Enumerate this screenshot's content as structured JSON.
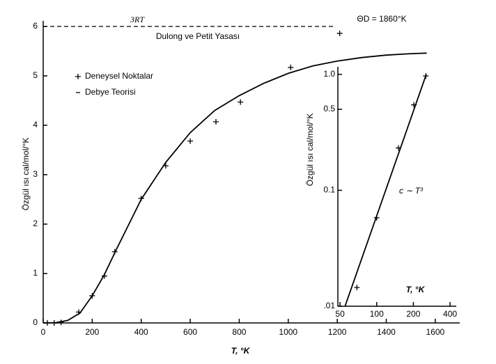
{
  "chart_data": [
    {
      "type": "line",
      "xlabel": "T, °K",
      "ylabel": "Özgül ısı cal/mol/°K",
      "annotation": "ΘD = 1860°K",
      "reference_line": {
        "value": 6,
        "label": "3RT",
        "text": "Dulong ve Petit Yasası"
      },
      "legend": "upper left",
      "xlim": [
        0,
        1700
      ],
      "ylim": [
        0,
        6
      ],
      "xticks": [
        0,
        200,
        400,
        600,
        800,
        1000,
        1200,
        1400,
        1600
      ],
      "yticks": [
        0,
        1,
        2,
        3,
        4,
        5,
        6
      ],
      "series": [
        {
          "name": "Deneysel Noktalar",
          "style": "markers",
          "color": "#000000",
          "x": [
            17,
            45,
            73,
            145,
            200,
            250,
            292,
            400,
            500,
            600,
            705,
            805,
            1010,
            1210
          ],
          "values": [
            0,
            0,
            0.01,
            0.22,
            0.55,
            0.95,
            1.44,
            2.52,
            3.18,
            3.68,
            4.07,
            4.47,
            5.17,
            5.86
          ]
        },
        {
          "name": "Debye Teorisi",
          "style": "line",
          "color": "#000000",
          "x": [
            0,
            50,
            100,
            150,
            200,
            250,
            300,
            350,
            400,
            500,
            600,
            700,
            800,
            900,
            1000,
            1100,
            1200,
            1300,
            1400,
            1500,
            1565
          ],
          "values": [
            0,
            0.005,
            0.05,
            0.2,
            0.55,
            0.98,
            1.5,
            2.0,
            2.5,
            3.25,
            3.85,
            4.3,
            4.6,
            4.85,
            5.05,
            5.2,
            5.3,
            5.37,
            5.42,
            5.45,
            5.46
          ]
        }
      ]
    },
    {
      "type": "line",
      "xlabel": "T, °K",
      "ylabel": "Özgül ısı cal/mol/°K",
      "annotation": "c ∼ T³",
      "xscale": "log",
      "yscale": "log",
      "xlim": [
        48,
        450
      ],
      "ylim": [
        0.01,
        1.1
      ],
      "xticks": [
        50,
        100,
        200,
        400
      ],
      "yticks": [
        {
          "value": 0.01,
          "label": ".01"
        },
        0.1,
        0.5,
        {
          "value": 1,
          "label": "1.0"
        }
      ],
      "series": [
        {
          "style": "markers",
          "color": "#000000",
          "x": [
            68.8,
            100,
            151,
            202,
            253
          ],
          "values": [
            0.0145,
            0.058,
            0.232,
            0.546,
            0.97
          ]
        },
        {
          "style": "line",
          "color": "#000000",
          "x": [
            55,
            255
          ],
          "values": [
            0.01,
            1
          ]
        }
      ]
    }
  ]
}
